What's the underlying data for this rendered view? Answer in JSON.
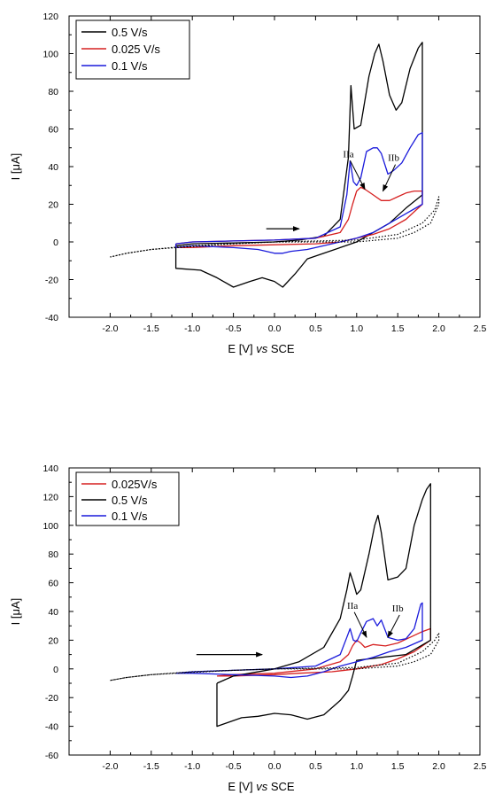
{
  "chart_data": [
    {
      "type": "line",
      "xlabel": "E [V] vs SCE",
      "xlabel_parts": [
        "E [V] ",
        "vs",
        " SCE"
      ],
      "ylabel": "I [μA]",
      "xlim": [
        -2.5,
        2.5
      ],
      "ylim": [
        -40,
        120
      ],
      "xticks": [
        -2.0,
        -1.5,
        -1.0,
        -0.5,
        0.0,
        0.5,
        1.0,
        1.5,
        2.0,
        2.5
      ],
      "xtick_labels": [
        "-2.0",
        "-1.5",
        "-1.0",
        "-0.5",
        "0.0",
        "0.5",
        "1.0",
        "1.5",
        "2.0",
        "2.5"
      ],
      "yticks": [
        -40,
        -20,
        0,
        20,
        40,
        60,
        80,
        100,
        120
      ],
      "ytick_labels": [
        "-40",
        "-20",
        "0",
        "20",
        "40",
        "60",
        "80",
        "100",
        "120"
      ],
      "grid": false,
      "legend_position": "top-left",
      "legend": [
        {
          "label": "0.5 V/s",
          "color": "#000000"
        },
        {
          "label": "0.025 V/s",
          "color": "#d62020"
        },
        {
          "label": "0.1 V/s",
          "color": "#1a1adb"
        }
      ],
      "series": [
        {
          "name": "0.5 V/s",
          "color": "#000000",
          "style": "solid",
          "x": [
            -1.2,
            -1.0,
            -0.5,
            0.0,
            0.3,
            0.6,
            0.8,
            0.9,
            0.93,
            0.97,
            1.05,
            1.15,
            1.22,
            1.27,
            1.32,
            1.4,
            1.48,
            1.55,
            1.65,
            1.75,
            1.8,
            1.8,
            1.6,
            1.4,
            1.2,
            1.0,
            0.8,
            0.6,
            0.4,
            0.25,
            0.1,
            0.0,
            -0.15,
            -0.3,
            -0.5,
            -0.7,
            -0.9,
            -1.2,
            -1.2
          ],
          "y": [
            -2,
            -1,
            -0.5,
            0,
            1,
            3,
            12,
            45,
            83,
            60,
            62,
            88,
            100,
            105,
            96,
            78,
            70,
            74,
            92,
            103,
            106,
            25,
            18,
            10,
            5,
            0,
            -3,
            -6,
            -9,
            -17,
            -24,
            -21,
            -19,
            -21,
            -24,
            -19,
            -15,
            -14,
            -2
          ]
        },
        {
          "name": "0.025 V/s",
          "color": "#d62020",
          "style": "solid",
          "x": [
            -1.2,
            -1.0,
            -0.5,
            0.0,
            0.5,
            0.8,
            0.9,
            0.95,
            1.0,
            1.05,
            1.1,
            1.2,
            1.3,
            1.4,
            1.5,
            1.6,
            1.7,
            1.8,
            1.8,
            1.6,
            1.4,
            1.2,
            1.0,
            0.8,
            0.5,
            0.0,
            -0.5,
            -1.0,
            -1.2,
            -1.2
          ],
          "y": [
            -1,
            0,
            0.5,
            1,
            2,
            5,
            12,
            20,
            27,
            29,
            28,
            25,
            22,
            22,
            24,
            26,
            27,
            27,
            20,
            12,
            7,
            4,
            2,
            0,
            -1,
            -1.5,
            -2,
            -3,
            -3,
            -1
          ]
        },
        {
          "name": "0.1 V/s",
          "color": "#1a1adb",
          "style": "solid",
          "x": [
            -1.2,
            -1.0,
            -0.5,
            0.0,
            0.5,
            0.8,
            0.88,
            0.92,
            0.96,
            1.0,
            1.05,
            1.12,
            1.2,
            1.25,
            1.3,
            1.38,
            1.45,
            1.55,
            1.65,
            1.75,
            1.8,
            1.8,
            1.6,
            1.4,
            1.2,
            1.0,
            0.8,
            0.6,
            0.4,
            0.2,
            0.1,
            0.0,
            -0.2,
            -0.5,
            -1.0,
            -1.2,
            -1.2
          ],
          "y": [
            -1,
            0,
            0.5,
            1,
            2,
            8,
            25,
            43,
            32,
            30,
            34,
            48,
            50,
            50,
            47,
            36,
            38,
            42,
            50,
            57,
            58,
            20,
            15,
            10,
            5,
            2,
            0,
            -2,
            -4,
            -5,
            -6,
            -6,
            -4,
            -3,
            -2,
            -3,
            -1
          ]
        },
        {
          "name": "",
          "color": "#000000",
          "style": "dotted",
          "x": [
            -2.0,
            -1.8,
            -1.5,
            -1.2,
            -0.5,
            0.0,
            0.5,
            1.0,
            1.5,
            1.8,
            1.95,
            2.0,
            2.0,
            1.9,
            1.7,
            1.5,
            1.0,
            0.5,
            0.0,
            -0.5,
            -1.0,
            -1.5,
            -1.8,
            -2.0,
            -2.0
          ],
          "y": [
            -8,
            -6,
            -4,
            -3,
            -1,
            0,
            0.5,
            1,
            4,
            10,
            17,
            24,
            20,
            10,
            5,
            2,
            0,
            0,
            0,
            -1,
            -2,
            -4,
            -6,
            -8,
            -8
          ]
        }
      ],
      "annotations": [
        {
          "text": "IIa",
          "x": 0.9,
          "y": 45,
          "arrow_to": [
            1.1,
            28
          ]
        },
        {
          "text": "IIb",
          "x": 1.45,
          "y": 43,
          "arrow_to": [
            1.32,
            27
          ]
        },
        {
          "text": "→",
          "kind": "scan-direction-arrow",
          "x": -0.1,
          "y": 7,
          "arrow_to": [
            0.3,
            7
          ]
        }
      ]
    },
    {
      "type": "line",
      "xlabel": "E [V] vs SCE",
      "xlabel_parts": [
        "E [V] ",
        "vs",
        " SCE"
      ],
      "ylabel": "I [μA]",
      "xlim": [
        -2.5,
        2.5
      ],
      "ylim": [
        -60,
        140
      ],
      "xticks": [
        -2.0,
        -1.5,
        -1.0,
        -0.5,
        0.0,
        0.5,
        1.0,
        1.5,
        2.0,
        2.5
      ],
      "xtick_labels": [
        "-2.0",
        "-1.5",
        "-1.0",
        "-0.5",
        "0.0",
        "0.5",
        "1.0",
        "1.5",
        "2.0",
        "2.5"
      ],
      "yticks": [
        -60,
        -40,
        -20,
        0,
        20,
        40,
        60,
        80,
        100,
        120,
        140
      ],
      "ytick_labels": [
        "-60",
        "-40",
        "-20",
        "0",
        "20",
        "40",
        "60",
        "80",
        "100",
        "120",
        "140"
      ],
      "grid": false,
      "legend_position": "top-left",
      "legend": [
        {
          "label": "0.025V/s",
          "color": "#d62020"
        },
        {
          "label": "0.5 V/s",
          "color": "#000000"
        },
        {
          "label": "0.1 V/s",
          "color": "#1a1adb"
        }
      ],
      "series": [
        {
          "name": "0.025V/s",
          "color": "#d62020",
          "style": "solid",
          "x": [
            -0.7,
            -0.5,
            0.0,
            0.5,
            0.8,
            0.9,
            0.95,
            1.0,
            1.05,
            1.1,
            1.2,
            1.35,
            1.5,
            1.65,
            1.8,
            1.9,
            1.9,
            1.7,
            1.5,
            1.3,
            1.0,
            0.7,
            0.3,
            0.0,
            -0.5,
            -0.7,
            -0.7
          ],
          "y": [
            -5,
            -4,
            -3,
            0,
            5,
            10,
            16,
            20,
            18,
            15,
            17,
            16,
            18,
            22,
            26,
            28,
            20,
            12,
            7,
            3,
            0,
            -2,
            -3,
            -4,
            -5,
            -5,
            -5
          ]
        },
        {
          "name": "0.5 V/s",
          "color": "#000000",
          "style": "solid",
          "x": [
            -0.7,
            -0.5,
            0.0,
            0.3,
            0.6,
            0.8,
            0.88,
            0.92,
            0.96,
            1.0,
            1.05,
            1.15,
            1.22,
            1.26,
            1.3,
            1.38,
            1.5,
            1.6,
            1.7,
            1.8,
            1.85,
            1.9,
            1.9,
            1.6,
            1.3,
            1.0,
            0.95,
            0.9,
            0.8,
            0.6,
            0.4,
            0.2,
            0.0,
            -0.2,
            -0.4,
            -0.6,
            -0.7,
            -0.7
          ],
          "y": [
            -10,
            -5,
            0,
            5,
            15,
            35,
            55,
            67,
            60,
            52,
            55,
            80,
            100,
            107,
            95,
            62,
            64,
            70,
            100,
            118,
            125,
            129,
            20,
            10,
            8,
            6,
            -5,
            -15,
            -22,
            -32,
            -35,
            -32,
            -31,
            -33,
            -34,
            -38,
            -40,
            -10
          ]
        },
        {
          "name": "0.1 V/s",
          "color": "#1a1adb",
          "style": "solid",
          "x": [
            -1.2,
            -1.0,
            -0.5,
            0.0,
            0.5,
            0.8,
            0.88,
            0.92,
            0.96,
            1.0,
            1.05,
            1.12,
            1.2,
            1.25,
            1.3,
            1.38,
            1.5,
            1.6,
            1.7,
            1.78,
            1.8,
            1.8,
            1.6,
            1.4,
            1.2,
            1.0,
            0.8,
            0.6,
            0.4,
            0.2,
            0.0,
            -0.5,
            -1.0,
            -1.2,
            -1.2
          ],
          "y": [
            -3,
            -2,
            -1,
            0,
            2,
            10,
            22,
            28,
            20,
            19,
            25,
            33,
            35,
            30,
            34,
            22,
            20,
            21,
            28,
            45,
            46,
            20,
            15,
            12,
            8,
            5,
            2,
            -2,
            -5,
            -6,
            -5,
            -4,
            -3,
            -3,
            -3
          ]
        },
        {
          "name": "",
          "color": "#000000",
          "style": "dotted",
          "x": [
            -2.0,
            -1.8,
            -1.5,
            -1.2,
            -0.5,
            0.0,
            0.5,
            1.0,
            1.5,
            1.8,
            1.95,
            2.0,
            2.0,
            1.9,
            1.7,
            1.5,
            1.0,
            0.5,
            0.0,
            -0.5,
            -1.0,
            -1.5,
            -1.8,
            -2.0,
            -2.0
          ],
          "y": [
            -8,
            -6,
            -4,
            -3,
            -1,
            0,
            0.5,
            1,
            4,
            12,
            20,
            25,
            20,
            10,
            5,
            2,
            0,
            0,
            0,
            -1,
            -2,
            -4,
            -6,
            -8,
            -8
          ]
        }
      ],
      "annotations": [
        {
          "text": "IIa",
          "x": 0.95,
          "y": 42,
          "arrow_to": [
            1.12,
            22
          ]
        },
        {
          "text": "IIb",
          "x": 1.5,
          "y": 40,
          "arrow_to": [
            1.38,
            22
          ]
        },
        {
          "text": "→",
          "kind": "scan-direction-arrow",
          "x": -0.95,
          "y": 10,
          "arrow_to": [
            -0.15,
            10
          ]
        }
      ]
    }
  ]
}
